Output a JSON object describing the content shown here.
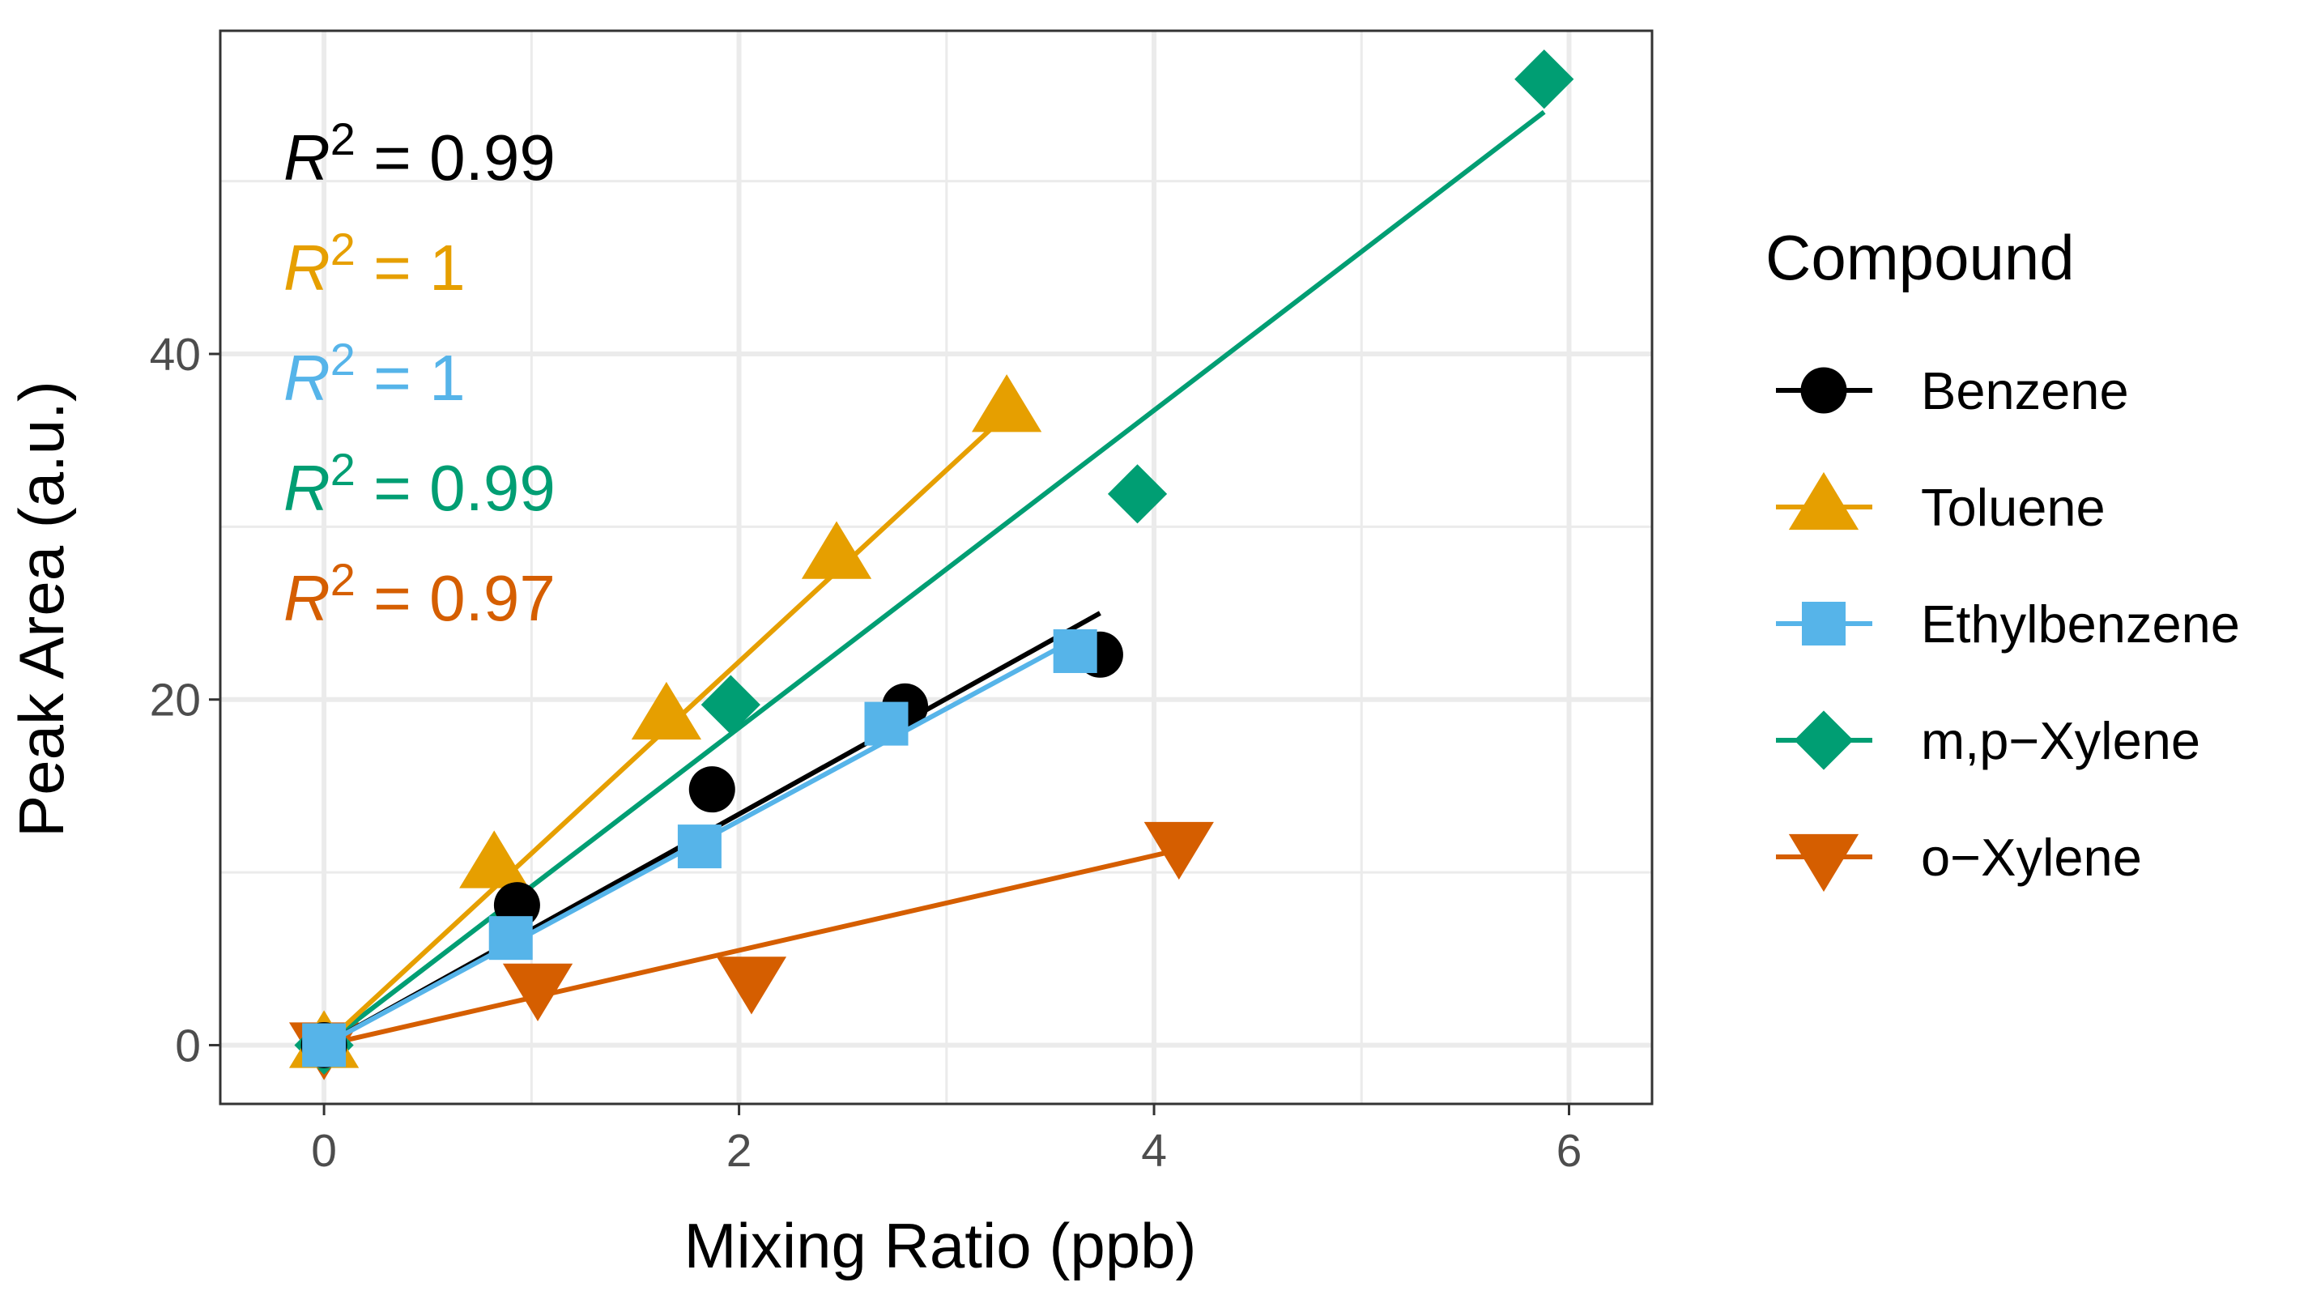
{
  "chart_data": {
    "type": "scatter",
    "xlabel": "Mixing Ratio (ppb)",
    "ylabel": "Peak Area (a.u.)",
    "xlim": [
      -0.5,
      6.4
    ],
    "ylim": [
      -3.4,
      58.7
    ],
    "x_ticks": [
      0,
      2,
      4,
      6
    ],
    "y_ticks": [
      0,
      20,
      40
    ],
    "grid": true,
    "legend_title": "Compound",
    "legend_position": "right",
    "series": [
      {
        "name": "Benzene",
        "color": "#000000",
        "marker": "circle",
        "points": [
          [
            0,
            0
          ],
          [
            0.93,
            8.1
          ],
          [
            1.87,
            14.8
          ],
          [
            2.8,
            19.6
          ],
          [
            3.74,
            22.6
          ]
        ],
        "fit": {
          "x": [
            0,
            3.74
          ],
          "y": [
            0,
            25.0
          ]
        },
        "r2": "0.99"
      },
      {
        "name": "Toluene",
        "color": "#E69F00",
        "marker": "triangle-up",
        "points": [
          [
            0,
            0
          ],
          [
            0.82,
            10.4
          ],
          [
            1.65,
            19.0
          ],
          [
            2.47,
            28.3
          ],
          [
            3.29,
            36.8
          ]
        ],
        "fit": {
          "x": [
            0,
            3.29
          ],
          "y": [
            0,
            36.5
          ]
        },
        "r2": "1"
      },
      {
        "name": "Ethylbenzene",
        "color": "#56B4E9",
        "marker": "square",
        "points": [
          [
            0,
            0
          ],
          [
            0.9,
            6.2
          ],
          [
            1.81,
            11.5
          ],
          [
            2.71,
            18.6
          ],
          [
            3.62,
            22.8
          ]
        ],
        "fit": {
          "x": [
            0,
            3.62
          ],
          "y": [
            0,
            23.5
          ]
        },
        "r2": "1"
      },
      {
        "name": "m,p−Xylene",
        "color": "#009E73",
        "marker": "diamond",
        "points": [
          [
            0,
            0
          ],
          [
            1.96,
            19.7
          ],
          [
            3.92,
            31.9
          ],
          [
            5.88,
            55.9
          ]
        ],
        "fit": {
          "x": [
            0,
            5.88
          ],
          "y": [
            0,
            54.0
          ]
        },
        "r2": "0.99"
      },
      {
        "name": "o−Xylene",
        "color": "#D55E00",
        "marker": "triangle-down",
        "points": [
          [
            0,
            0
          ],
          [
            1.03,
            3.4
          ],
          [
            2.06,
            3.8
          ],
          [
            4.12,
            11.6
          ]
        ],
        "fit": {
          "x": [
            0,
            4.12
          ],
          "y": [
            0,
            11.3
          ]
        },
        "r2": "0.97"
      }
    ],
    "annotations": [
      {
        "text": "R² = 0.99",
        "color": "#000000"
      },
      {
        "text": "R² = 1",
        "color": "#E69F00"
      },
      {
        "text": "R² = 1",
        "color": "#56B4E9"
      },
      {
        "text": "R² = 0.99",
        "color": "#009E73"
      },
      {
        "text": "R² = 0.97",
        "color": "#D55E00"
      }
    ]
  }
}
